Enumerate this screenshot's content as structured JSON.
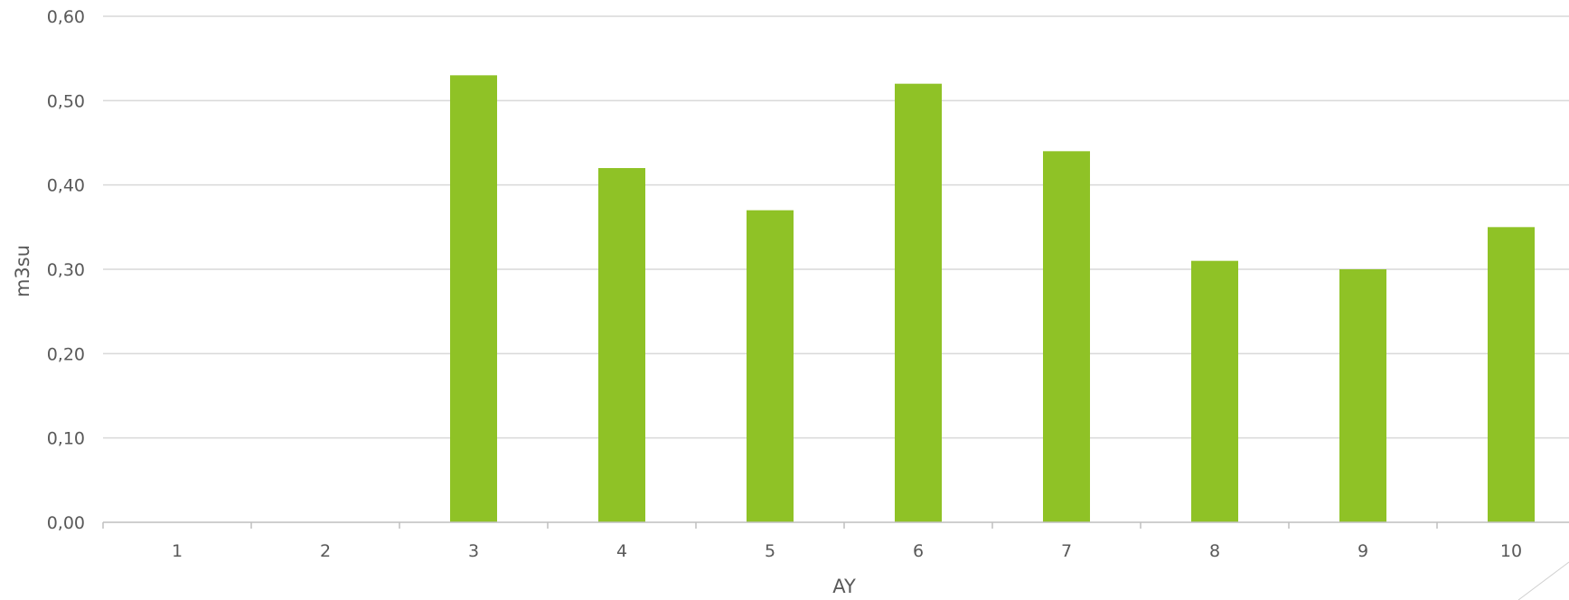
{
  "chart_data": {
    "type": "bar",
    "title": "",
    "xlabel": "AY",
    "ylabel": "m3su",
    "categories": [
      "1",
      "2",
      "3",
      "4",
      "5",
      "6",
      "7",
      "8",
      "9",
      "10"
    ],
    "series": [
      {
        "values": [
          0,
          0,
          0.53,
          0.42,
          0.37,
          0.52,
          0.44,
          0.31,
          0.3,
          0.35
        ],
        "color": "#8fc226"
      }
    ],
    "ylim": [
      0,
      0.6
    ],
    "yticks": [
      "0,00",
      "0,10",
      "0,20",
      "0,30",
      "0,40",
      "0,50",
      "0,60"
    ],
    "grid": true,
    "legend": "none"
  },
  "colors": {
    "bar": "#8fc226",
    "gridline": "#d9d9d9",
    "axis": "#bfbfbf",
    "text": "#595959"
  }
}
